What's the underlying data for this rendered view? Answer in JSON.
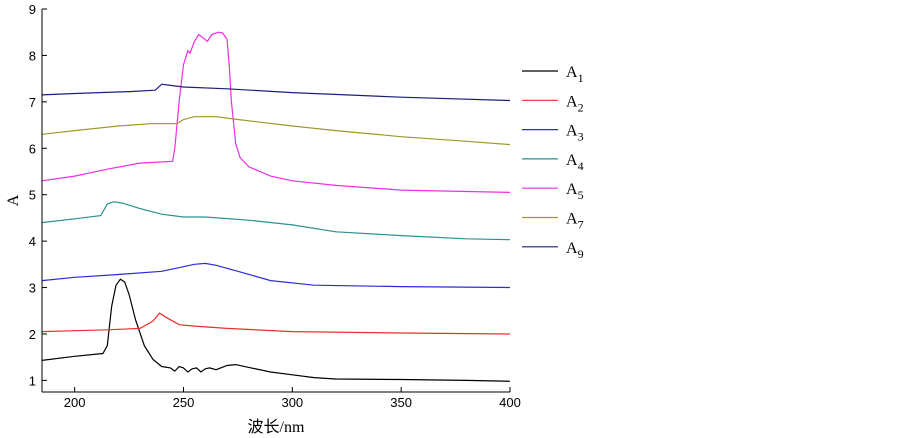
{
  "chart_data": {
    "type": "line",
    "title": "",
    "xlabel": "波长/nm",
    "ylabel": "A",
    "xlim": [
      185,
      400
    ],
    "ylim": [
      0.75,
      9
    ],
    "xticks": [
      200,
      250,
      300,
      350,
      400
    ],
    "yticks": [
      1,
      2,
      3,
      4,
      5,
      6,
      7,
      8,
      9
    ],
    "grid": false,
    "legend_position": "right",
    "series": [
      {
        "name": "A",
        "sub": "1",
        "color": "#000000",
        "points": [
          [
            185,
            1.43
          ],
          [
            200,
            1.52
          ],
          [
            213,
            1.58
          ],
          [
            215,
            1.75
          ],
          [
            217,
            2.6
          ],
          [
            219,
            3.05
          ],
          [
            221,
            3.18
          ],
          [
            223,
            3.12
          ],
          [
            225,
            2.85
          ],
          [
            228,
            2.3
          ],
          [
            232,
            1.75
          ],
          [
            236,
            1.45
          ],
          [
            240,
            1.3
          ],
          [
            244,
            1.27
          ],
          [
            246,
            1.2
          ],
          [
            248,
            1.3
          ],
          [
            250,
            1.27
          ],
          [
            252,
            1.18
          ],
          [
            254,
            1.25
          ],
          [
            256,
            1.27
          ],
          [
            258,
            1.18
          ],
          [
            260,
            1.25
          ],
          [
            262,
            1.27
          ],
          [
            265,
            1.23
          ],
          [
            270,
            1.32
          ],
          [
            274,
            1.34
          ],
          [
            280,
            1.28
          ],
          [
            290,
            1.18
          ],
          [
            300,
            1.12
          ],
          [
            310,
            1.06
          ],
          [
            320,
            1.03
          ],
          [
            350,
            1.02
          ],
          [
            380,
            1.0
          ],
          [
            400,
            0.98
          ]
        ]
      },
      {
        "name": "A",
        "sub": "2",
        "color": "#e8302a",
        "points": [
          [
            185,
            2.05
          ],
          [
            200,
            2.07
          ],
          [
            215,
            2.09
          ],
          [
            230,
            2.12
          ],
          [
            236,
            2.28
          ],
          [
            239,
            2.45
          ],
          [
            242,
            2.36
          ],
          [
            248,
            2.2
          ],
          [
            255,
            2.17
          ],
          [
            270,
            2.12
          ],
          [
            300,
            2.05
          ],
          [
            350,
            2.02
          ],
          [
            400,
            2.0
          ]
        ]
      },
      {
        "name": "A",
        "sub": "3",
        "color": "#2b2bd9",
        "points": [
          [
            185,
            3.15
          ],
          [
            200,
            3.22
          ],
          [
            220,
            3.28
          ],
          [
            240,
            3.35
          ],
          [
            250,
            3.45
          ],
          [
            255,
            3.5
          ],
          [
            260,
            3.52
          ],
          [
            265,
            3.48
          ],
          [
            275,
            3.35
          ],
          [
            290,
            3.15
          ],
          [
            310,
            3.05
          ],
          [
            350,
            3.02
          ],
          [
            400,
            3.0
          ]
        ]
      },
      {
        "name": "A",
        "sub": "4",
        "color": "#2a9090",
        "points": [
          [
            185,
            4.4
          ],
          [
            200,
            4.48
          ],
          [
            212,
            4.55
          ],
          [
            215,
            4.8
          ],
          [
            218,
            4.85
          ],
          [
            222,
            4.82
          ],
          [
            230,
            4.7
          ],
          [
            240,
            4.58
          ],
          [
            250,
            4.52
          ],
          [
            260,
            4.52
          ],
          [
            280,
            4.45
          ],
          [
            300,
            4.35
          ],
          [
            320,
            4.2
          ],
          [
            350,
            4.12
          ],
          [
            380,
            4.05
          ],
          [
            400,
            4.03
          ]
        ]
      },
      {
        "name": "A",
        "sub": "5",
        "color": "#ee2ee6",
        "points": [
          [
            185,
            5.3
          ],
          [
            200,
            5.4
          ],
          [
            215,
            5.55
          ],
          [
            230,
            5.68
          ],
          [
            245,
            5.72
          ],
          [
            246,
            6.0
          ],
          [
            248,
            7.0
          ],
          [
            250,
            7.8
          ],
          [
            252,
            8.1
          ],
          [
            253,
            8.05
          ],
          [
            255,
            8.3
          ],
          [
            257,
            8.45
          ],
          [
            259,
            8.38
          ],
          [
            261,
            8.3
          ],
          [
            263,
            8.45
          ],
          [
            266,
            8.5
          ],
          [
            268,
            8.48
          ],
          [
            270,
            8.35
          ],
          [
            271,
            7.8
          ],
          [
            272,
            7.0
          ],
          [
            274,
            6.1
          ],
          [
            276,
            5.8
          ],
          [
            280,
            5.6
          ],
          [
            290,
            5.4
          ],
          [
            300,
            5.3
          ],
          [
            320,
            5.2
          ],
          [
            350,
            5.1
          ],
          [
            400,
            5.05
          ]
        ]
      },
      {
        "name": "A",
        "sub": "7",
        "color": "#9a9a2a",
        "points": [
          [
            185,
            6.3
          ],
          [
            200,
            6.38
          ],
          [
            220,
            6.48
          ],
          [
            235,
            6.53
          ],
          [
            247,
            6.53
          ],
          [
            250,
            6.62
          ],
          [
            255,
            6.68
          ],
          [
            265,
            6.68
          ],
          [
            275,
            6.62
          ],
          [
            300,
            6.48
          ],
          [
            320,
            6.38
          ],
          [
            350,
            6.25
          ],
          [
            380,
            6.15
          ],
          [
            400,
            6.08
          ]
        ]
      },
      {
        "name": "A",
        "sub": "9",
        "color": "#1e1e7a",
        "points": [
          [
            185,
            7.15
          ],
          [
            200,
            7.18
          ],
          [
            225,
            7.22
          ],
          [
            237,
            7.25
          ],
          [
            240,
            7.38
          ],
          [
            243,
            7.36
          ],
          [
            250,
            7.32
          ],
          [
            270,
            7.28
          ],
          [
            300,
            7.2
          ],
          [
            350,
            7.1
          ],
          [
            400,
            7.03
          ]
        ]
      }
    ]
  }
}
